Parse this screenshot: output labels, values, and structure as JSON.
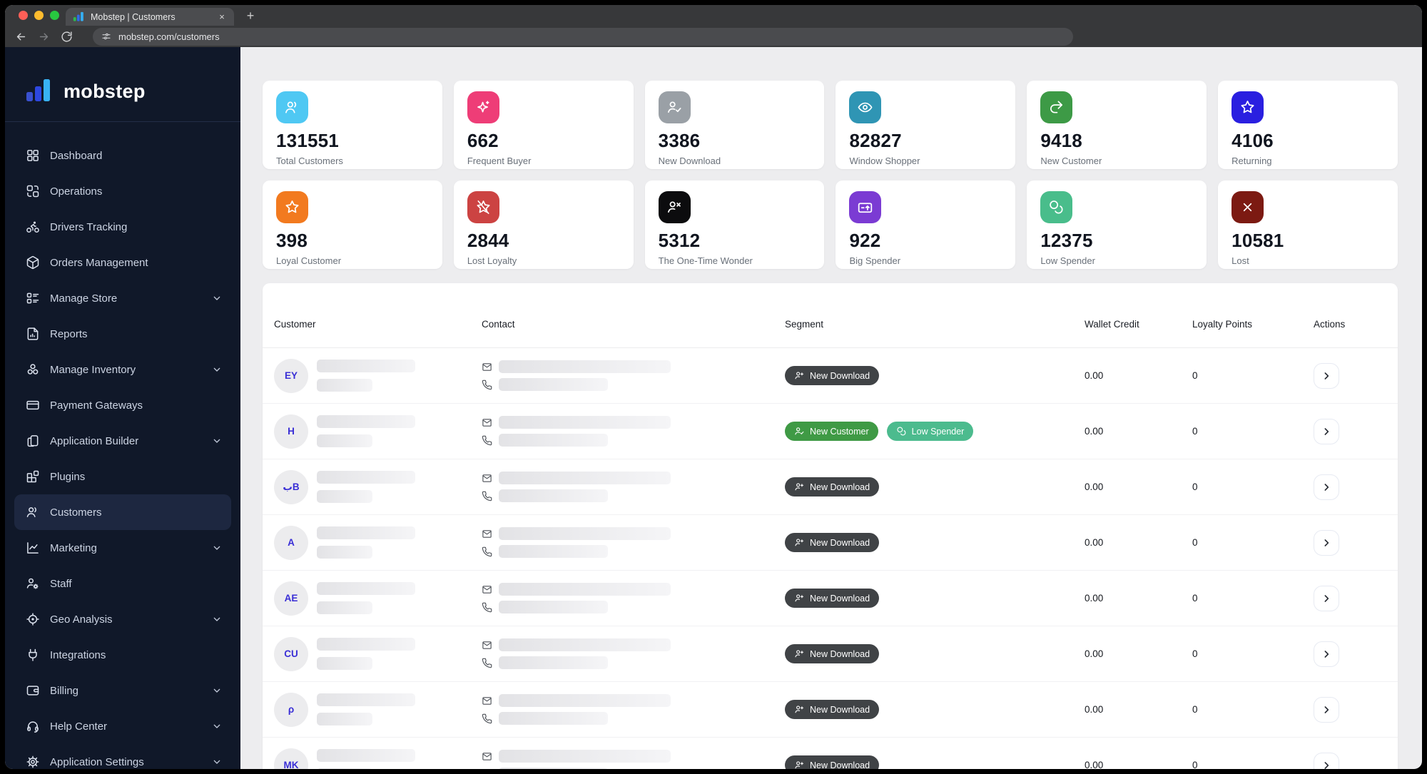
{
  "browser": {
    "tab_title": "Mobstep | Customers",
    "url": "mobstep.com/customers",
    "new_tab_label": "+",
    "close_tab_label": "×",
    "traffic_lights": [
      "#ff5f57",
      "#febc2e",
      "#28c840"
    ],
    "favicon_colors": [
      "#2eb84f",
      "#2f6ae6",
      "#35aef2"
    ]
  },
  "brand": {
    "name": "mobstep",
    "bar_colors": [
      "#3950cf",
      "#2d47e0",
      "#38b2f4"
    ]
  },
  "colors": {
    "sidebar_bg": "#101829",
    "main_bg": "#ededef",
    "avatar_initials": "#3a2fd6",
    "active_nav_bg": "#1d2740"
  },
  "sidebar": {
    "items": [
      {
        "id": "dashboard",
        "label": "Dashboard",
        "icon": "dashboard-icon",
        "expandable": false,
        "active": false
      },
      {
        "id": "operations",
        "label": "Operations",
        "icon": "operations-icon",
        "expandable": false,
        "active": false
      },
      {
        "id": "drivers-tracking",
        "label": "Drivers Tracking",
        "icon": "bicycle-icon",
        "expandable": false,
        "active": false
      },
      {
        "id": "orders-management",
        "label": "Orders Management",
        "icon": "package-icon",
        "expandable": false,
        "active": false
      },
      {
        "id": "manage-store",
        "label": "Manage Store",
        "icon": "store-list-icon",
        "expandable": true,
        "active": false
      },
      {
        "id": "reports",
        "label": "Reports",
        "icon": "report-document-icon",
        "expandable": false,
        "active": false
      },
      {
        "id": "manage-inventory",
        "label": "Manage Inventory",
        "icon": "inventory-icon",
        "expandable": true,
        "active": false
      },
      {
        "id": "payment-gateways",
        "label": "Payment Gateways",
        "icon": "credit-card-icon",
        "expandable": false,
        "active": false
      },
      {
        "id": "application-builder",
        "label": "Application Builder",
        "icon": "mobile-app-icon",
        "expandable": true,
        "active": false
      },
      {
        "id": "plugins",
        "label": "Plugins",
        "icon": "plugins-icon",
        "expandable": false,
        "active": false
      },
      {
        "id": "customers",
        "label": "Customers",
        "icon": "customers-icon",
        "expandable": false,
        "active": true
      },
      {
        "id": "marketing",
        "label": "Marketing",
        "icon": "marketing-chart-icon",
        "expandable": true,
        "active": false
      },
      {
        "id": "staff",
        "label": "Staff",
        "icon": "staff-icon",
        "expandable": false,
        "active": false
      },
      {
        "id": "geo-analysis",
        "label": "Geo Analysis",
        "icon": "geo-target-icon",
        "expandable": true,
        "active": false
      },
      {
        "id": "integrations",
        "label": "Integrations",
        "icon": "plug-icon",
        "expandable": false,
        "active": false
      },
      {
        "id": "billing",
        "label": "Billing",
        "icon": "wallet-icon",
        "expandable": true,
        "active": false
      },
      {
        "id": "help-center",
        "label": "Help Center",
        "icon": "headset-icon",
        "expandable": true,
        "active": false
      },
      {
        "id": "application-settings",
        "label": "Application Settings",
        "icon": "gear-icon",
        "expandable": true,
        "active": false
      }
    ]
  },
  "stats": [
    {
      "value": "131551",
      "label": "Total Customers",
      "icon": "users-icon",
      "color": "#4fc8f3"
    },
    {
      "value": "662",
      "label": "Frequent Buyer",
      "icon": "sparkles-icon",
      "color": "#ee3d77"
    },
    {
      "value": "3386",
      "label": "New Download",
      "icon": "user-check-icon",
      "color": "#9aa0a6"
    },
    {
      "value": "82827",
      "label": "Window Shopper",
      "icon": "eye-icon",
      "color": "#2f95b4"
    },
    {
      "value": "9418",
      "label": "New Customer",
      "icon": "redo-arrow-icon",
      "color": "#3d9a46"
    },
    {
      "value": "4106",
      "label": "Returning",
      "icon": "star-icon",
      "color": "#2a1fe0"
    },
    {
      "value": "398",
      "label": "Loyal Customer",
      "icon": "star-icon",
      "color": "#f27a1f"
    },
    {
      "value": "2844",
      "label": "Lost Loyalty",
      "icon": "star-slash-icon",
      "color": "#cc4342"
    },
    {
      "value": "5312",
      "label": "The One-Time Wonder",
      "icon": "user-x-icon",
      "color": "#0c0c0e"
    },
    {
      "value": "922",
      "label": "Big Spender",
      "icon": "card-up-icon",
      "color": "#7b3bd3"
    },
    {
      "value": "12375",
      "label": "Low Spender",
      "icon": "coins-icon",
      "color": "#49bd8b"
    },
    {
      "value": "10581",
      "label": "Lost",
      "icon": "x-icon",
      "color": "#7c1a12"
    }
  ],
  "table": {
    "columns": [
      "Customer",
      "Contact",
      "Segment",
      "Wallet Credit",
      "Loyalty Points",
      "Actions"
    ],
    "rows": [
      {
        "initials": "EY",
        "segments": [
          {
            "label": "New Download",
            "icon": "user-plus-icon",
            "color": "#404346"
          }
        ],
        "wallet_credit": "0.00",
        "loyalty_points": "0"
      },
      {
        "initials": "H",
        "segments": [
          {
            "label": "New Customer",
            "icon": "user-check-icon",
            "color": "#3f9a45"
          },
          {
            "label": "Low Spender",
            "icon": "coins-icon",
            "color": "#4cbb8e"
          }
        ],
        "wallet_credit": "0.00",
        "loyalty_points": "0"
      },
      {
        "initials": "بB",
        "segments": [
          {
            "label": "New Download",
            "icon": "user-plus-icon",
            "color": "#404346"
          }
        ],
        "wallet_credit": "0.00",
        "loyalty_points": "0"
      },
      {
        "initials": "A",
        "segments": [
          {
            "label": "New Download",
            "icon": "user-plus-icon",
            "color": "#404346"
          }
        ],
        "wallet_credit": "0.00",
        "loyalty_points": "0"
      },
      {
        "initials": "AE",
        "segments": [
          {
            "label": "New Download",
            "icon": "user-plus-icon",
            "color": "#404346"
          }
        ],
        "wallet_credit": "0.00",
        "loyalty_points": "0"
      },
      {
        "initials": "CU",
        "segments": [
          {
            "label": "New Download",
            "icon": "user-plus-icon",
            "color": "#404346"
          }
        ],
        "wallet_credit": "0.00",
        "loyalty_points": "0"
      },
      {
        "initials": "ρ",
        "segments": [
          {
            "label": "New Download",
            "icon": "user-plus-icon",
            "color": "#404346"
          }
        ],
        "wallet_credit": "0.00",
        "loyalty_points": "0"
      },
      {
        "initials": "MK",
        "segments": [
          {
            "label": "New Download",
            "icon": "user-plus-icon",
            "color": "#404346"
          }
        ],
        "wallet_credit": "0.00",
        "loyalty_points": "0"
      }
    ]
  }
}
